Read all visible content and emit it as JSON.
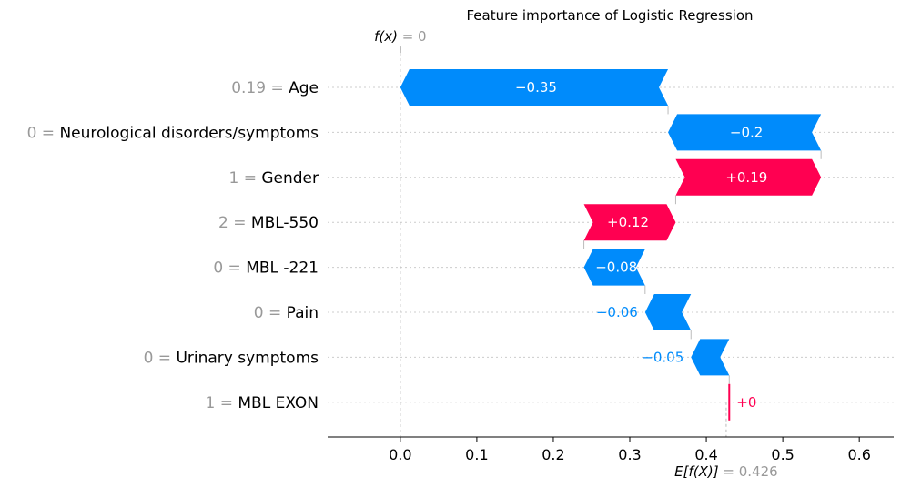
{
  "chart_data": {
    "type": "waterfall",
    "title": "Feature importance of Logistic Regression",
    "fx_label": "f(x)",
    "fx_value": "0",
    "ex_label": "E[f(X)]",
    "ex_value": "0.426",
    "base_value": 0.426,
    "final_value": 0,
    "xlim": [
      -0.095,
      0.645
    ],
    "xticks": [
      0.0,
      0.1,
      0.2,
      0.3,
      0.4,
      0.5,
      0.6
    ],
    "xtick_labels": [
      "0.0",
      "0.1",
      "0.2",
      "0.3",
      "0.4",
      "0.5",
      "0.6"
    ],
    "colors": {
      "negative": "#008bfb",
      "positive": "#ff0051",
      "feature_value": "#999999"
    },
    "features": [
      {
        "name": "Age",
        "value": "0.19",
        "contribution": -0.35,
        "label": "−0.35"
      },
      {
        "name": "Neurological disorders/symptoms",
        "value": "0",
        "contribution": -0.2,
        "label": "−0.2"
      },
      {
        "name": "Gender",
        "value": "1",
        "contribution": 0.19,
        "label": "+0.19"
      },
      {
        "name": "MBL-550",
        "value": "2",
        "contribution": 0.12,
        "label": "+0.12"
      },
      {
        "name": "MBL -221",
        "value": "0",
        "contribution": -0.08,
        "label": "−0.08"
      },
      {
        "name": "Pain",
        "value": "0",
        "contribution": -0.06,
        "label": "−0.06"
      },
      {
        "name": "Urinary symptoms",
        "value": "0",
        "contribution": -0.05,
        "label": "−0.05"
      },
      {
        "name": "MBL EXON",
        "value": "1",
        "contribution": 0.001,
        "label": "+0"
      }
    ]
  }
}
